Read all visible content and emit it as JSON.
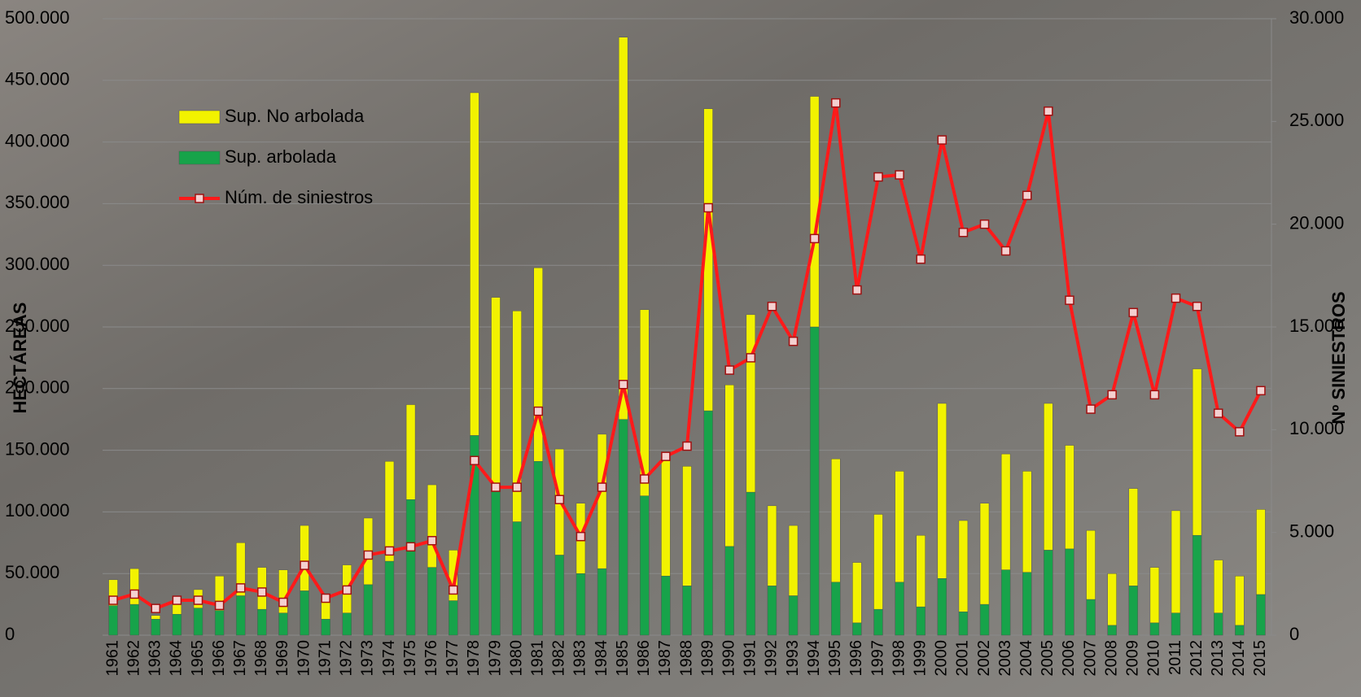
{
  "chart_data": {
    "type": "bar-line",
    "y_label": "HECTÁREAS",
    "y2_label": "Nº SINIESTROS",
    "categories": [
      "1961",
      "1962",
      "1963",
      "1964",
      "1965",
      "1966",
      "1967",
      "1968",
      "1969",
      "1970",
      "1971",
      "1972",
      "1973",
      "1974",
      "1975",
      "1976",
      "1977",
      "1978",
      "1979",
      "1980",
      "1981",
      "1982",
      "1983",
      "1984",
      "1985",
      "1986",
      "1987",
      "1988",
      "1989",
      "1990",
      "1991",
      "1992",
      "1993",
      "1994",
      "1995",
      "1996",
      "1997",
      "1998",
      "1999",
      "2000",
      "2001",
      "2002",
      "2003",
      "2004",
      "2005",
      "2006",
      "2007",
      "2008",
      "2009",
      "2010",
      "2011",
      "2012",
      "2013",
      "2014",
      "2015"
    ],
    "series": [
      {
        "name": "Sup. No arbolada",
        "color": "#f2f200",
        "kind": "bar",
        "values": [
          21000,
          29000,
          3000,
          10000,
          15000,
          28000,
          43000,
          34000,
          35000,
          53000,
          19000,
          39000,
          54000,
          81000,
          77000,
          67000,
          41000,
          278000,
          154000,
          171000,
          157000,
          86000,
          57000,
          109000,
          310000,
          151000,
          97000,
          97000,
          245000,
          131000,
          144000,
          65000,
          57000,
          187000,
          100000,
          49000,
          77000,
          90000,
          58000,
          142000,
          74000,
          82000,
          94000,
          82000,
          119000,
          84000,
          56000,
          42000,
          79000,
          45000,
          83000,
          135000,
          43000,
          40000,
          69000
        ]
      },
      {
        "name": "Sup. arbolada",
        "color": "#17a34a",
        "kind": "bar",
        "values": [
          24000,
          25000,
          13000,
          17000,
          22000,
          20000,
          32000,
          21000,
          18000,
          36000,
          13000,
          18000,
          41000,
          60000,
          110000,
          55000,
          28000,
          162000,
          120000,
          92000,
          141000,
          65000,
          50000,
          54000,
          175000,
          113000,
          48000,
          40000,
          182000,
          72000,
          116000,
          40000,
          32000,
          250000,
          43000,
          10000,
          21000,
          43000,
          23000,
          46000,
          19000,
          25000,
          53000,
          51000,
          69000,
          70000,
          29000,
          8000,
          40000,
          10000,
          18000,
          81000,
          18000,
          8000,
          33000
        ]
      },
      {
        "name": "Núm. de siniestros",
        "color": "#ff1a1a",
        "kind": "line",
        "axis": "y2",
        "values": [
          1700,
          2000,
          1300,
          1700,
          1700,
          1450,
          2300,
          2100,
          1600,
          3400,
          1800,
          2200,
          3900,
          4100,
          4300,
          4600,
          2200,
          8500,
          7200,
          7200,
          10900,
          6600,
          4800,
          7200,
          12200,
          7600,
          8700,
          9200,
          20800,
          12900,
          13500,
          16000,
          14300,
          19300,
          25900,
          16800,
          22300,
          22400,
          18300,
          24100,
          19600,
          20000,
          18700,
          21400,
          25500,
          16300,
          11000,
          11700,
          15700,
          11700,
          16400,
          16000,
          10800,
          9900,
          11900
        ]
      }
    ],
    "ylim": [
      0,
      500000
    ],
    "yticks": [
      0,
      {
        "value": 50000,
        "label": "50.000"
      },
      {
        "value": 100000,
        "label": "100.000"
      },
      {
        "value": 150000,
        "label": "150.000"
      },
      {
        "value": 200000,
        "label": "200.000"
      },
      {
        "value": 250000,
        "label": "250.000"
      },
      {
        "value": 300000,
        "label": "300.000"
      },
      {
        "value": 350000,
        "label": "350.000"
      },
      {
        "value": 400000,
        "label": "400.000"
      },
      {
        "value": 450000,
        "label": "450.000"
      },
      {
        "value": 500000,
        "label": "500.000"
      }
    ],
    "y2lim": [
      0,
      30000
    ],
    "y2ticks": [
      0,
      {
        "value": 5000,
        "label": "5.000"
      },
      {
        "value": 10000,
        "label": "10.000"
      },
      {
        "value": 15000,
        "label": "15.000"
      },
      {
        "value": 20000,
        "label": "20.000"
      },
      {
        "value": 25000,
        "label": "25.000"
      },
      {
        "value": 30000,
        "label": "30.000"
      }
    ],
    "grid": true,
    "legend": "top-left"
  }
}
